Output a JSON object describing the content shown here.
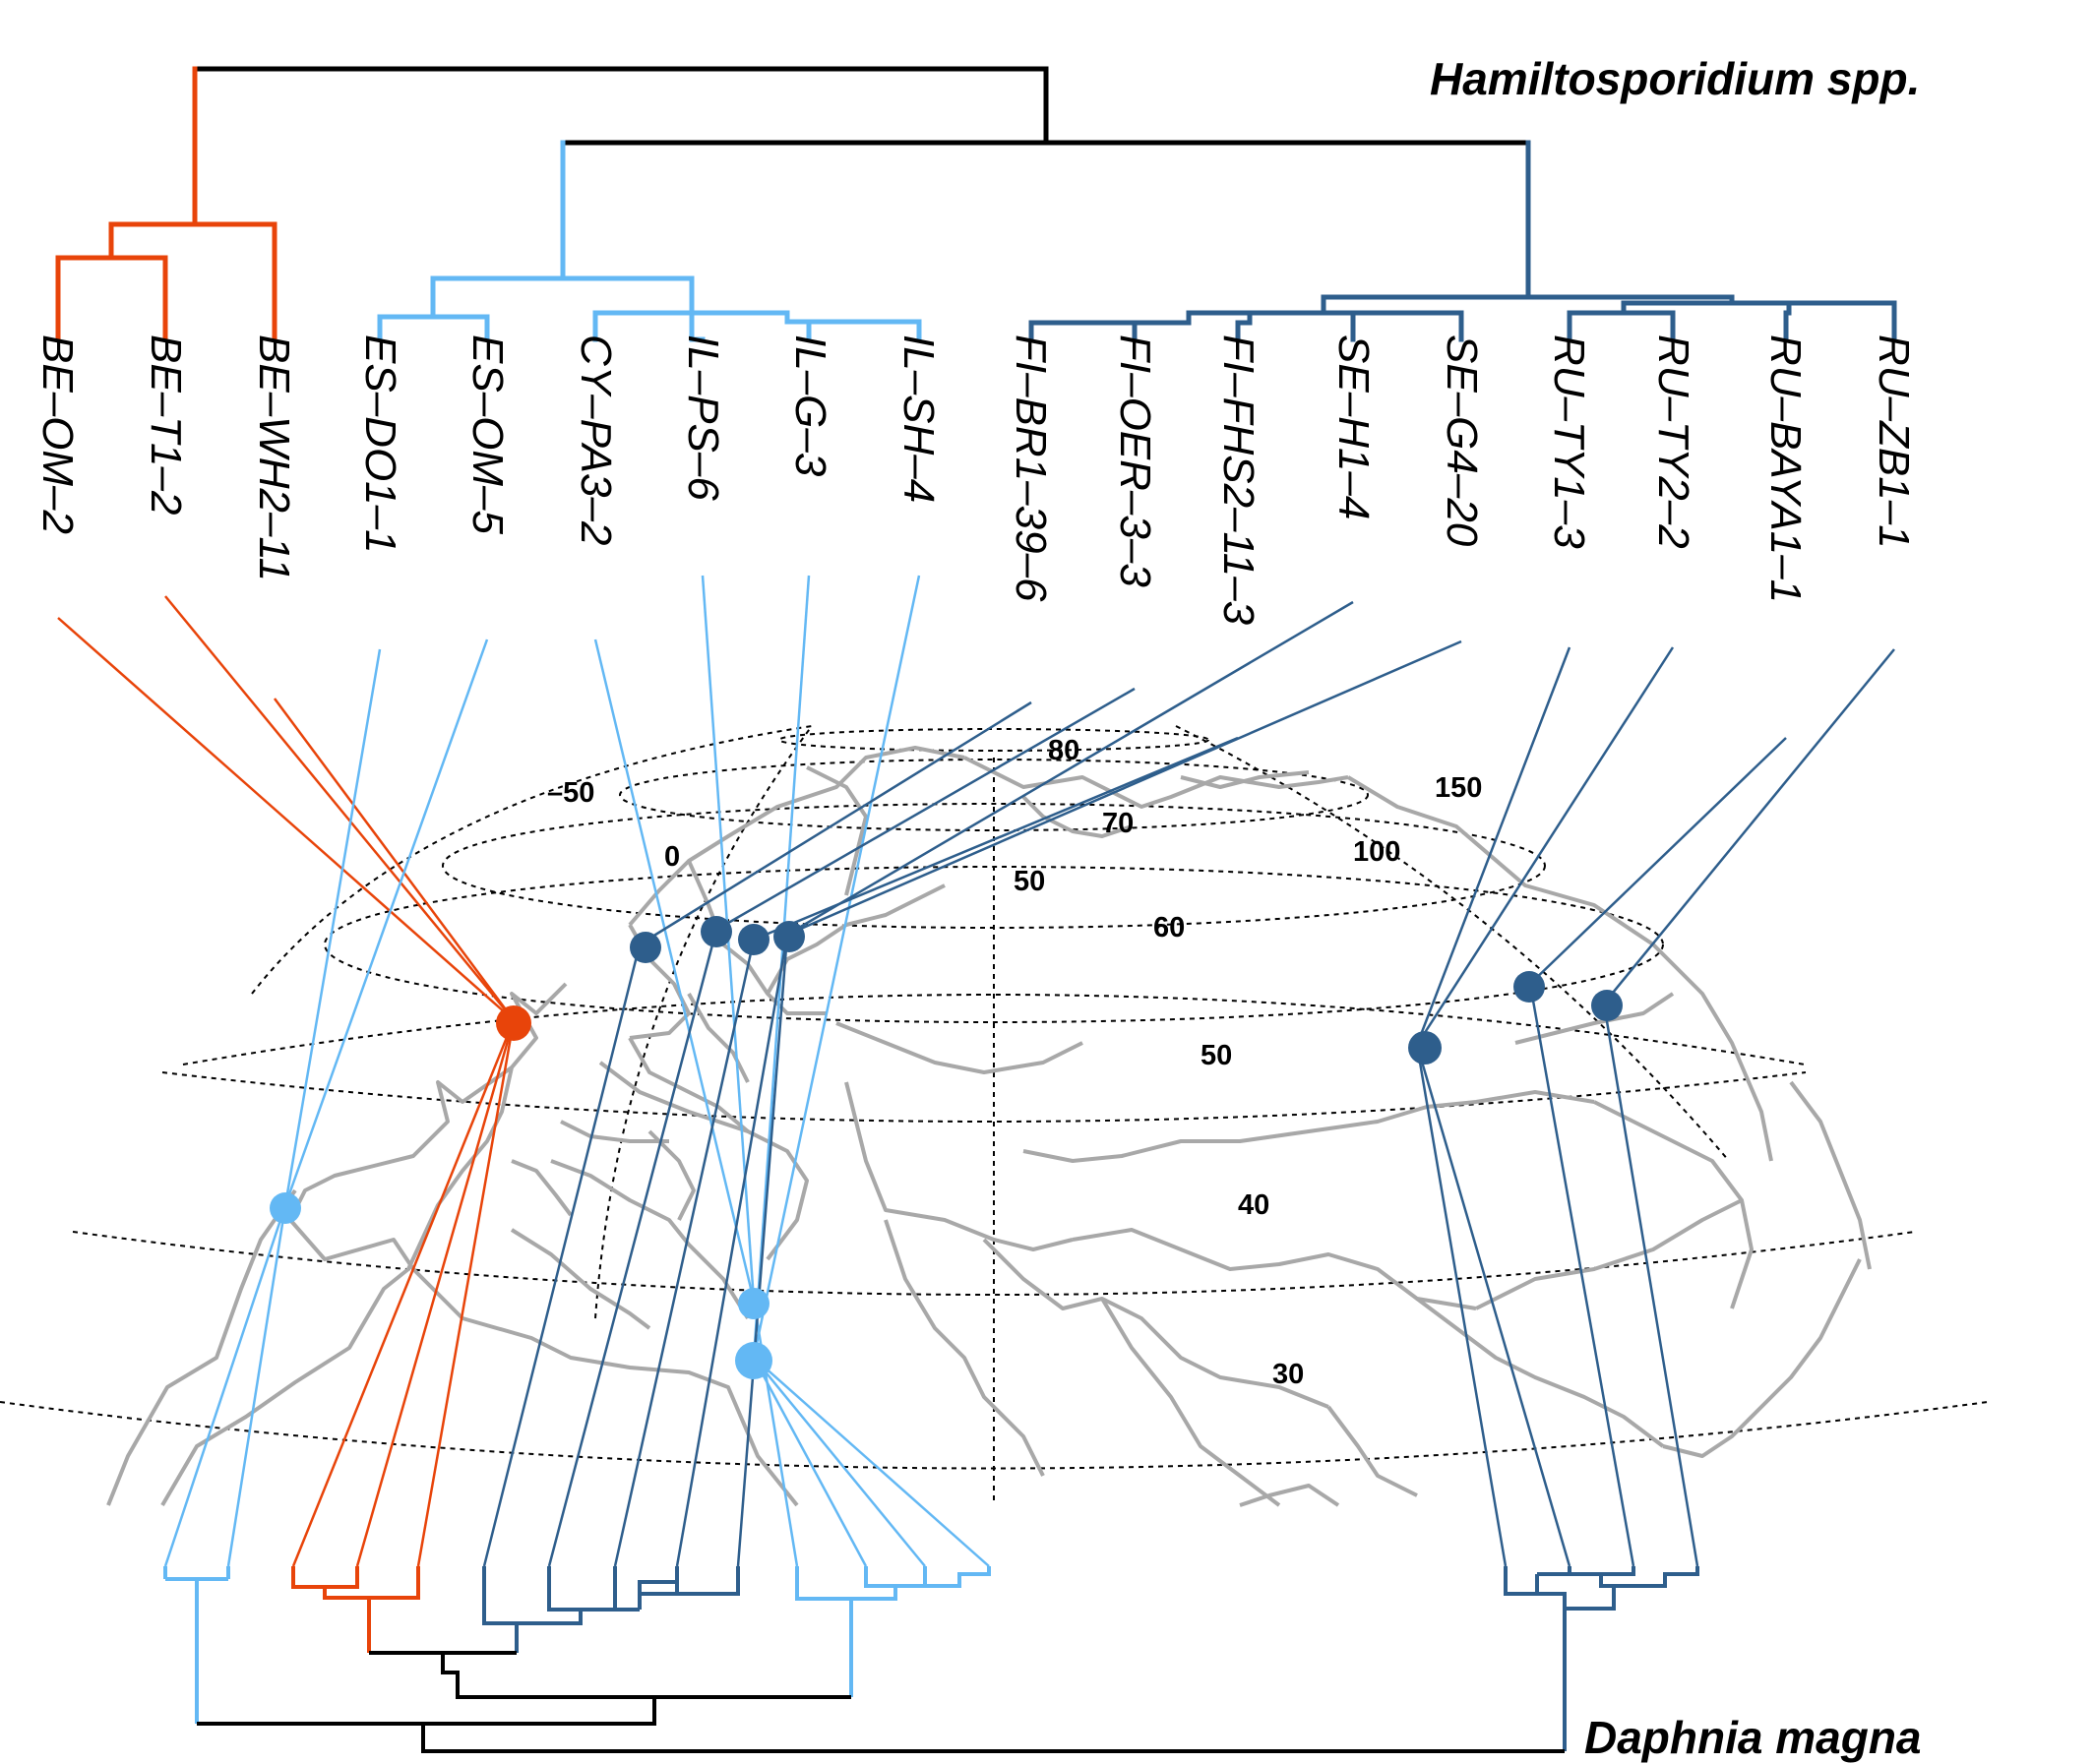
{
  "title_parasite": "Hamiltosporidium spp.",
  "title_host": "Daphnia magna",
  "colors": {
    "clade_orange": "#e8440a",
    "clade_light_blue": "#63b8f4",
    "clade_dark_blue": "#2e5e8c",
    "root": "#000000",
    "map_borders": "#a8a8a8",
    "graticule": "#000000"
  },
  "isolates": [
    "BE–OM–2",
    "BE–T1–2",
    "BE–WH2–11",
    "ES–DO1–1",
    "ES–OM–5",
    "CY–PA3–2",
    "IL–PS–6",
    "IL–G–3",
    "IL–SH–4",
    "FI–BR1–39–6",
    "FI–OER–3–3",
    "FI–FHS2–11–3",
    "SE–H1–4",
    "SE–G4–20",
    "RU–TY1–3",
    "RU–TY2–2",
    "RU–BAYA1–1",
    "RU–ZB1–1"
  ],
  "graticule_labels": {
    "lon_minus50": "–50",
    "lon_0": "0",
    "lon_50": "50",
    "lon_100": "100",
    "lon_150": "150",
    "lat_80": "80",
    "lat_70": "70",
    "lat_60": "60",
    "lat_50": "50",
    "lat_40": "40",
    "lat_30": "30"
  }
}
